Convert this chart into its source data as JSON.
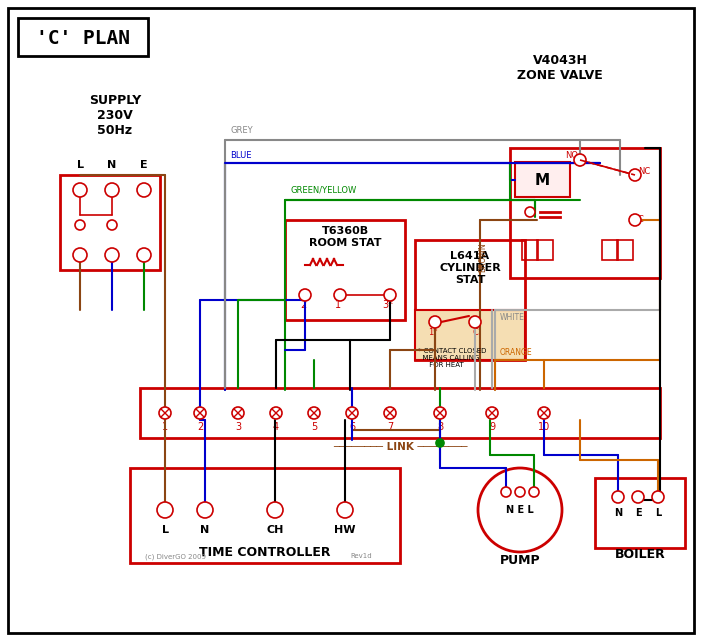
{
  "title": "'C' PLAN",
  "bg_color": "#ffffff",
  "border_color": "#000000",
  "red": "#cc0000",
  "blue": "#0000cc",
  "green": "#008800",
  "brown": "#8B4513",
  "grey": "#888888",
  "orange": "#cc6600",
  "black": "#000000",
  "white_wire": "#aaaaaa",
  "supply_text": "SUPPLY\n230V\n50Hz",
  "supply_lne": "L   N   E",
  "zone_valve_title": "V4043H\nZONE VALVE",
  "room_stat_title": "T6360B\nROOM STAT",
  "cyl_stat_title": "L641A\nCYLINDER\nSTAT",
  "time_controller_title": "TIME CONTROLLER",
  "pump_title": "PUMP",
  "boiler_title": "BOILER",
  "link_label": "LINK"
}
